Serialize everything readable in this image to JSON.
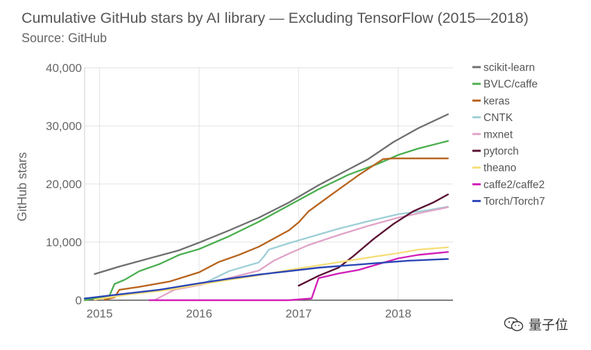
{
  "chart_data": {
    "type": "line",
    "title": "Cumulative GitHub stars by AI library — Excluding TensorFlow (2015—2018)",
    "subtitle": "Source: GitHub",
    "xlabel": "",
    "ylabel": "GitHub stars",
    "xlim": [
      2014.85,
      2018.55
    ],
    "ylim": [
      0,
      40000
    ],
    "x_ticks": [
      2015,
      2016,
      2017,
      2018
    ],
    "x_tick_labels": [
      "2015",
      "2016",
      "2017",
      "2018"
    ],
    "y_ticks": [
      0,
      10000,
      20000,
      30000,
      40000
    ],
    "y_tick_labels": [
      "0",
      "10,000",
      "20,000",
      "30,000",
      "40,000"
    ],
    "grid": true,
    "legend_position": "right",
    "series": [
      {
        "name": "scikit-learn",
        "color": "#707070",
        "x": [
          2014.95,
          2015.2,
          2015.5,
          2015.8,
          2016.0,
          2016.3,
          2016.6,
          2016.9,
          2017.2,
          2017.5,
          2017.7,
          2017.95,
          2018.2,
          2018.5
        ],
        "y": [
          4500,
          5800,
          7200,
          8600,
          9900,
          12000,
          14200,
          16800,
          19800,
          22500,
          24300,
          27200,
          29600,
          32000
        ]
      },
      {
        "name": "BVLC/caffe",
        "color": "#4caf50",
        "x": [
          2014.85,
          2015.1,
          2015.15,
          2015.25,
          2015.4,
          2015.6,
          2015.8,
          2016.0,
          2016.3,
          2016.6,
          2016.9,
          2017.2,
          2017.5,
          2017.8,
          2018.0,
          2018.2,
          2018.5
        ],
        "y": [
          0,
          800,
          2800,
          3500,
          5000,
          6200,
          7800,
          8800,
          11000,
          13500,
          16300,
          19100,
          21600,
          23500,
          25000,
          26100,
          27400
        ]
      },
      {
        "name": "keras",
        "color": "#b8651f",
        "x": [
          2015.05,
          2015.15,
          2015.2,
          2015.4,
          2015.7,
          2016.0,
          2016.2,
          2016.4,
          2016.6,
          2016.9,
          2017.0,
          2017.1,
          2017.3,
          2017.6,
          2017.85,
          2017.95,
          2018.1,
          2018.5
        ],
        "y": [
          100,
          500,
          1800,
          2300,
          3200,
          4800,
          6600,
          7800,
          9200,
          12000,
          13400,
          15300,
          17800,
          21500,
          24300,
          24400,
          24400,
          24400
        ]
      },
      {
        "name": "CNTK",
        "color": "#9fd0d6",
        "x": [
          2016.05,
          2016.3,
          2016.6,
          2016.65,
          2016.7,
          2016.9,
          2017.1,
          2017.4,
          2017.7,
          2018.0,
          2018.3,
          2018.5
        ],
        "y": [
          2900,
          5000,
          6500,
          7500,
          8700,
          9800,
          10800,
          12300,
          13600,
          14800,
          15500,
          16100
        ]
      },
      {
        "name": "mxnet",
        "color": "#e0a3c6",
        "x": [
          2015.55,
          2015.75,
          2016.0,
          2016.3,
          2016.6,
          2016.75,
          2016.9,
          2017.1,
          2017.4,
          2017.7,
          2018.0,
          2018.3,
          2018.5
        ],
        "y": [
          0,
          1800,
          2600,
          3800,
          5100,
          6800,
          8000,
          9500,
          11200,
          12800,
          14200,
          15300,
          16000
        ]
      },
      {
        "name": "pytorch",
        "color": "#5a0f32",
        "x": [
          2017.0,
          2017.2,
          2017.4,
          2017.55,
          2017.75,
          2017.95,
          2018.15,
          2018.35,
          2018.5
        ],
        "y": [
          2500,
          4200,
          5600,
          7600,
          10500,
          13100,
          15300,
          16800,
          18200
        ]
      },
      {
        "name": "theano",
        "color": "#f6de7a",
        "x": [
          2014.95,
          2015.3,
          2015.7,
          2016.0,
          2016.3,
          2016.6,
          2016.9,
          2017.2,
          2017.5,
          2017.8,
          2018.0,
          2018.2,
          2018.5
        ],
        "y": [
          100,
          1000,
          1800,
          2700,
          3500,
          4300,
          5200,
          6000,
          6800,
          7600,
          8100,
          8700,
          9100
        ]
      },
      {
        "name": "caffe2/caffe2",
        "color": "#d21fb8",
        "x": [
          2015.5,
          2016.9,
          2017.13,
          2017.2,
          2017.4,
          2017.6,
          2017.8,
          2018.0,
          2018.2,
          2018.5
        ],
        "y": [
          0,
          0,
          300,
          3800,
          4600,
          5200,
          6200,
          7200,
          7800,
          8300
        ]
      },
      {
        "name": "Torch/Torch7",
        "color": "#2a45b5",
        "x": [
          2014.85,
          2015.2,
          2015.6,
          2016.0,
          2016.3,
          2016.6,
          2016.9,
          2017.2,
          2017.5,
          2017.8,
          2018.1,
          2018.5
        ],
        "y": [
          300,
          1000,
          1800,
          2900,
          3700,
          4400,
          5000,
          5600,
          6000,
          6400,
          6800,
          7100
        ]
      }
    ]
  },
  "watermark": {
    "text": "量子位",
    "icon": "wechat-icon"
  }
}
